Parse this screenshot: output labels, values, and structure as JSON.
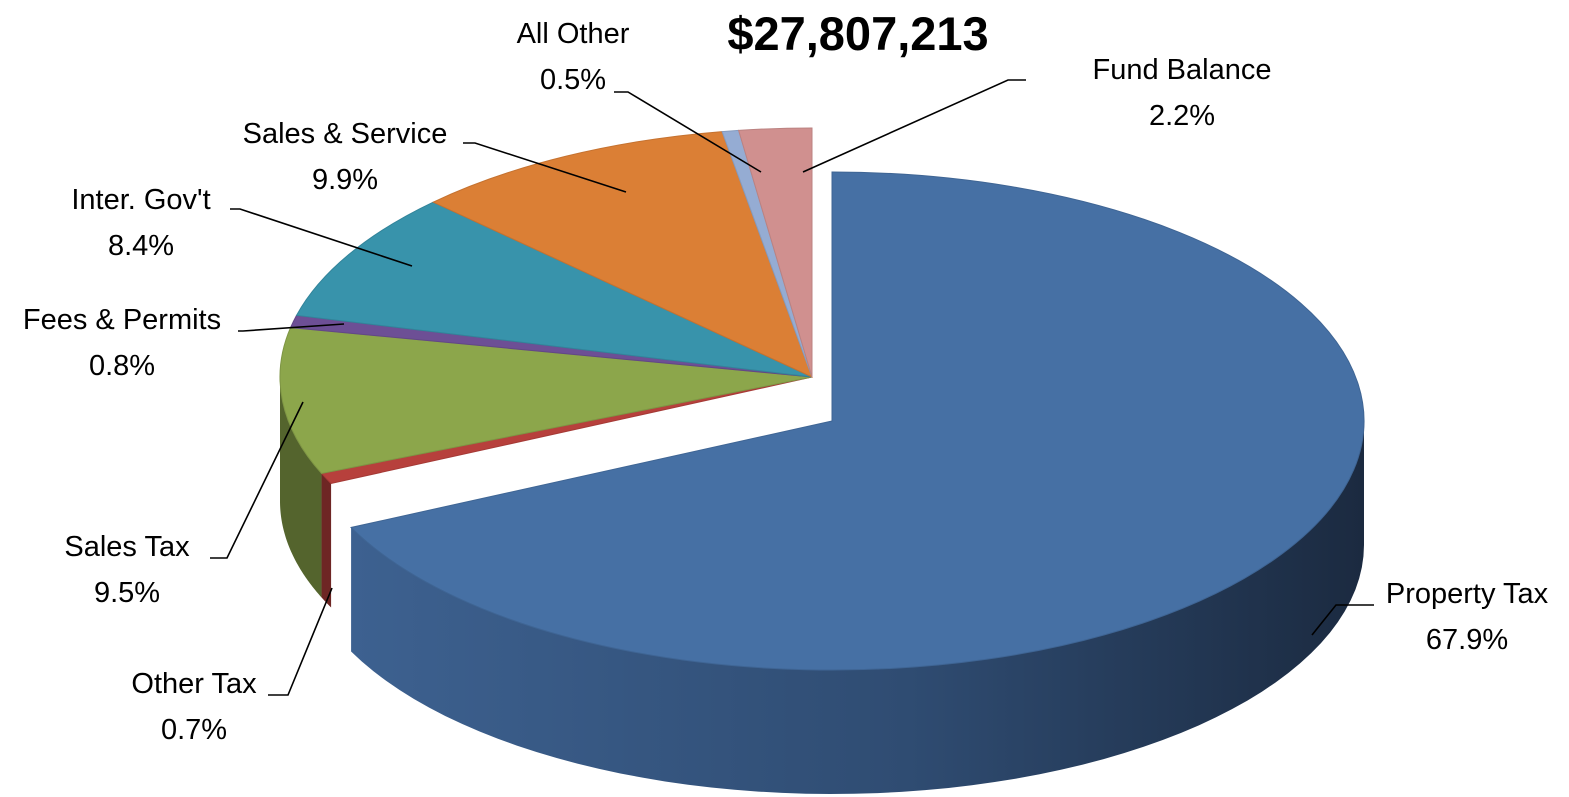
{
  "chart_data": {
    "type": "pie",
    "title": "$27,807,213",
    "slices": [
      {
        "name": "Property Tax",
        "pct_label": "67.9%",
        "value": 67.9,
        "color": "#4670a4"
      },
      {
        "name": "Other Tax",
        "pct_label": "0.7%",
        "value": 0.7,
        "color": "#b7403c"
      },
      {
        "name": "Sales Tax",
        "pct_label": "9.5%",
        "value": 9.5,
        "color": "#8ca64b"
      },
      {
        "name": "Fees & Permits",
        "pct_label": "0.8%",
        "value": 0.8,
        "color": "#6d4f95"
      },
      {
        "name": "Inter. Gov't",
        "pct_label": "8.4%",
        "value": 8.4,
        "color": "#3893ab"
      },
      {
        "name": "Sales & Service",
        "pct_label": "9.9%",
        "value": 9.9,
        "color": "#db7f35"
      },
      {
        "name": "All Other",
        "pct_label": "0.5%",
        "value": 0.5,
        "color": "#95acd3"
      },
      {
        "name": "Fund Balance",
        "pct_label": "2.2%",
        "value": 2.2,
        "color": "#d0908f"
      }
    ],
    "legend": "none",
    "style": "3d-exploded-pie"
  }
}
